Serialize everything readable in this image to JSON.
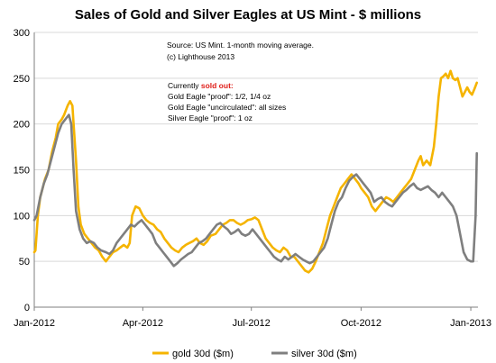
{
  "chart_data": {
    "type": "line",
    "title": "Sales of Gold and Silver Eagles at US Mint - $ millions",
    "ylim": [
      0,
      300
    ],
    "yticks": [
      0,
      50,
      100,
      150,
      200,
      250,
      300
    ],
    "x_range": [
      "2012-01-01",
      "2013-01-07"
    ],
    "xticks": [
      {
        "date": "2012-01-01",
        "label": "Jan-2012"
      },
      {
        "date": "2012-04-01",
        "label": "Apr-2012"
      },
      {
        "date": "2012-07-01",
        "label": "Jul-2012"
      },
      {
        "date": "2012-10-01",
        "label": "Oct-2012"
      },
      {
        "date": "2013-01-01",
        "label": "Jan-2013"
      }
    ],
    "grid": "horizontal",
    "legend_position": "bottom",
    "annotations": {
      "source_lines": [
        "Source: US Mint. 1-month moving average.",
        "(c) Lighthouse 2013"
      ],
      "status_prefix": "Currently ",
      "status_highlight": "sold out:",
      "status_items": [
        "Gold Eagle \"proof\": 1/2, 1/4 oz",
        "Gold Eagle \"uncirculated\": all sizes",
        "Silver Eagle \"proof\": 1 oz"
      ]
    },
    "series": [
      {
        "name": "gold 30d ($m)",
        "color": "#f5b400",
        "points": [
          [
            "2012-01-01",
            60
          ],
          [
            "2012-01-02",
            62
          ],
          [
            "2012-01-04",
            100
          ],
          [
            "2012-01-06",
            120
          ],
          [
            "2012-01-08",
            130
          ],
          [
            "2012-01-10",
            140
          ],
          [
            "2012-01-13",
            150
          ],
          [
            "2012-01-16",
            170
          ],
          [
            "2012-01-19",
            185
          ],
          [
            "2012-01-21",
            200
          ],
          [
            "2012-01-24",
            205
          ],
          [
            "2012-01-26",
            210
          ],
          [
            "2012-01-29",
            220
          ],
          [
            "2012-01-31",
            225
          ],
          [
            "2012-02-02",
            220
          ],
          [
            "2012-02-03",
            200
          ],
          [
            "2012-02-05",
            160
          ],
          [
            "2012-02-07",
            110
          ],
          [
            "2012-02-09",
            90
          ],
          [
            "2012-02-12",
            80
          ],
          [
            "2012-02-15",
            75
          ],
          [
            "2012-02-18",
            70
          ],
          [
            "2012-02-21",
            65
          ],
          [
            "2012-02-24",
            62
          ],
          [
            "2012-02-27",
            55
          ],
          [
            "2012-03-01",
            50
          ],
          [
            "2012-03-04",
            55
          ],
          [
            "2012-03-07",
            60
          ],
          [
            "2012-03-10",
            62
          ],
          [
            "2012-03-13",
            65
          ],
          [
            "2012-03-16",
            68
          ],
          [
            "2012-03-19",
            65
          ],
          [
            "2012-03-21",
            70
          ],
          [
            "2012-03-23",
            100
          ],
          [
            "2012-03-26",
            110
          ],
          [
            "2012-03-29",
            108
          ],
          [
            "2012-04-01",
            100
          ],
          [
            "2012-04-04",
            95
          ],
          [
            "2012-04-07",
            92
          ],
          [
            "2012-04-10",
            90
          ],
          [
            "2012-04-13",
            85
          ],
          [
            "2012-04-16",
            82
          ],
          [
            "2012-04-19",
            75
          ],
          [
            "2012-04-22",
            70
          ],
          [
            "2012-04-25",
            65
          ],
          [
            "2012-04-28",
            62
          ],
          [
            "2012-05-01",
            60
          ],
          [
            "2012-05-04",
            65
          ],
          [
            "2012-05-07",
            68
          ],
          [
            "2012-05-10",
            70
          ],
          [
            "2012-05-13",
            72
          ],
          [
            "2012-05-16",
            75
          ],
          [
            "2012-05-19",
            70
          ],
          [
            "2012-05-22",
            68
          ],
          [
            "2012-05-25",
            72
          ],
          [
            "2012-05-28",
            78
          ],
          [
            "2012-06-01",
            80
          ],
          [
            "2012-06-04",
            85
          ],
          [
            "2012-06-07",
            90
          ],
          [
            "2012-06-10",
            92
          ],
          [
            "2012-06-13",
            95
          ],
          [
            "2012-06-16",
            95
          ],
          [
            "2012-06-19",
            92
          ],
          [
            "2012-06-22",
            90
          ],
          [
            "2012-06-25",
            92
          ],
          [
            "2012-06-28",
            95
          ],
          [
            "2012-07-01",
            96
          ],
          [
            "2012-07-04",
            98
          ],
          [
            "2012-07-07",
            95
          ],
          [
            "2012-07-10",
            85
          ],
          [
            "2012-07-13",
            75
          ],
          [
            "2012-07-16",
            70
          ],
          [
            "2012-07-19",
            65
          ],
          [
            "2012-07-22",
            62
          ],
          [
            "2012-07-25",
            60
          ],
          [
            "2012-07-28",
            65
          ],
          [
            "2012-07-31",
            62
          ],
          [
            "2012-08-03",
            55
          ],
          [
            "2012-08-06",
            55
          ],
          [
            "2012-08-09",
            50
          ],
          [
            "2012-08-12",
            45
          ],
          [
            "2012-08-15",
            40
          ],
          [
            "2012-08-18",
            38
          ],
          [
            "2012-08-21",
            42
          ],
          [
            "2012-08-24",
            50
          ],
          [
            "2012-08-27",
            60
          ],
          [
            "2012-08-30",
            70
          ],
          [
            "2012-09-02",
            85
          ],
          [
            "2012-09-05",
            100
          ],
          [
            "2012-09-08",
            110
          ],
          [
            "2012-09-11",
            120
          ],
          [
            "2012-09-14",
            130
          ],
          [
            "2012-09-17",
            135
          ],
          [
            "2012-09-20",
            140
          ],
          [
            "2012-09-23",
            145
          ],
          [
            "2012-09-26",
            140
          ],
          [
            "2012-09-29",
            135
          ],
          [
            "2012-10-01",
            130
          ],
          [
            "2012-10-04",
            125
          ],
          [
            "2012-10-07",
            120
          ],
          [
            "2012-10-10",
            110
          ],
          [
            "2012-10-13",
            105
          ],
          [
            "2012-10-16",
            110
          ],
          [
            "2012-10-19",
            115
          ],
          [
            "2012-10-22",
            120
          ],
          [
            "2012-10-25",
            118
          ],
          [
            "2012-10-28",
            115
          ],
          [
            "2012-10-31",
            120
          ],
          [
            "2012-11-03",
            125
          ],
          [
            "2012-11-06",
            130
          ],
          [
            "2012-11-09",
            135
          ],
          [
            "2012-11-12",
            140
          ],
          [
            "2012-11-15",
            150
          ],
          [
            "2012-11-18",
            160
          ],
          [
            "2012-11-20",
            165
          ],
          [
            "2012-11-22",
            155
          ],
          [
            "2012-11-25",
            160
          ],
          [
            "2012-11-28",
            155
          ],
          [
            "2012-12-01",
            175
          ],
          [
            "2012-12-03",
            200
          ],
          [
            "2012-12-05",
            230
          ],
          [
            "2012-12-07",
            250
          ],
          [
            "2012-12-09",
            252
          ],
          [
            "2012-12-11",
            255
          ],
          [
            "2012-12-13",
            250
          ],
          [
            "2012-12-15",
            258
          ],
          [
            "2012-12-17",
            250
          ],
          [
            "2012-12-19",
            248
          ],
          [
            "2012-12-21",
            250
          ],
          [
            "2012-12-23",
            240
          ],
          [
            "2012-12-25",
            230
          ],
          [
            "2012-12-27",
            235
          ],
          [
            "2012-12-29",
            240
          ],
          [
            "2012-12-31",
            235
          ],
          [
            "2013-01-02",
            232
          ],
          [
            "2013-01-04",
            238
          ],
          [
            "2013-01-06",
            245
          ]
        ]
      },
      {
        "name": "silver 30d ($m)",
        "color": "#7f7f7f",
        "points": [
          [
            "2012-01-01",
            95
          ],
          [
            "2012-01-03",
            100
          ],
          [
            "2012-01-06",
            120
          ],
          [
            "2012-01-09",
            135
          ],
          [
            "2012-01-12",
            145
          ],
          [
            "2012-01-15",
            160
          ],
          [
            "2012-01-18",
            175
          ],
          [
            "2012-01-21",
            190
          ],
          [
            "2012-01-24",
            200
          ],
          [
            "2012-01-27",
            205
          ],
          [
            "2012-01-30",
            210
          ],
          [
            "2012-02-01",
            200
          ],
          [
            "2012-02-03",
            150
          ],
          [
            "2012-02-05",
            105
          ],
          [
            "2012-02-08",
            85
          ],
          [
            "2012-02-11",
            75
          ],
          [
            "2012-02-14",
            70
          ],
          [
            "2012-02-17",
            72
          ],
          [
            "2012-02-20",
            70
          ],
          [
            "2012-02-23",
            65
          ],
          [
            "2012-02-26",
            62
          ],
          [
            "2012-03-01",
            60
          ],
          [
            "2012-03-04",
            58
          ],
          [
            "2012-03-07",
            62
          ],
          [
            "2012-03-10",
            70
          ],
          [
            "2012-03-13",
            75
          ],
          [
            "2012-03-16",
            80
          ],
          [
            "2012-03-19",
            85
          ],
          [
            "2012-03-22",
            90
          ],
          [
            "2012-03-25",
            88
          ],
          [
            "2012-03-28",
            92
          ],
          [
            "2012-03-31",
            95
          ],
          [
            "2012-04-03",
            90
          ],
          [
            "2012-04-06",
            85
          ],
          [
            "2012-04-09",
            80
          ],
          [
            "2012-04-12",
            70
          ],
          [
            "2012-04-15",
            65
          ],
          [
            "2012-04-18",
            60
          ],
          [
            "2012-04-21",
            55
          ],
          [
            "2012-04-24",
            50
          ],
          [
            "2012-04-27",
            45
          ],
          [
            "2012-04-30",
            48
          ],
          [
            "2012-05-03",
            52
          ],
          [
            "2012-05-06",
            55
          ],
          [
            "2012-05-09",
            58
          ],
          [
            "2012-05-12",
            60
          ],
          [
            "2012-05-15",
            65
          ],
          [
            "2012-05-18",
            70
          ],
          [
            "2012-05-21",
            72
          ],
          [
            "2012-05-24",
            75
          ],
          [
            "2012-05-27",
            80
          ],
          [
            "2012-05-30",
            85
          ],
          [
            "2012-06-02",
            90
          ],
          [
            "2012-06-05",
            92
          ],
          [
            "2012-06-08",
            88
          ],
          [
            "2012-06-11",
            85
          ],
          [
            "2012-06-14",
            80
          ],
          [
            "2012-06-17",
            82
          ],
          [
            "2012-06-20",
            85
          ],
          [
            "2012-06-23",
            80
          ],
          [
            "2012-06-26",
            78
          ],
          [
            "2012-06-29",
            80
          ],
          [
            "2012-07-02",
            85
          ],
          [
            "2012-07-05",
            80
          ],
          [
            "2012-07-08",
            75
          ],
          [
            "2012-07-11",
            70
          ],
          [
            "2012-07-14",
            65
          ],
          [
            "2012-07-17",
            60
          ],
          [
            "2012-07-20",
            55
          ],
          [
            "2012-07-23",
            52
          ],
          [
            "2012-07-26",
            50
          ],
          [
            "2012-07-29",
            55
          ],
          [
            "2012-08-01",
            52
          ],
          [
            "2012-08-04",
            55
          ],
          [
            "2012-08-07",
            58
          ],
          [
            "2012-08-10",
            55
          ],
          [
            "2012-08-13",
            52
          ],
          [
            "2012-08-16",
            50
          ],
          [
            "2012-08-19",
            48
          ],
          [
            "2012-08-22",
            50
          ],
          [
            "2012-08-25",
            55
          ],
          [
            "2012-08-28",
            60
          ],
          [
            "2012-08-31",
            65
          ],
          [
            "2012-09-03",
            75
          ],
          [
            "2012-09-06",
            90
          ],
          [
            "2012-09-09",
            105
          ],
          [
            "2012-09-12",
            115
          ],
          [
            "2012-09-15",
            120
          ],
          [
            "2012-09-18",
            130
          ],
          [
            "2012-09-21",
            138
          ],
          [
            "2012-09-24",
            142
          ],
          [
            "2012-09-27",
            145
          ],
          [
            "2012-09-30",
            140
          ],
          [
            "2012-10-03",
            135
          ],
          [
            "2012-10-06",
            130
          ],
          [
            "2012-10-09",
            125
          ],
          [
            "2012-10-12",
            115
          ],
          [
            "2012-10-15",
            118
          ],
          [
            "2012-10-18",
            120
          ],
          [
            "2012-10-21",
            115
          ],
          [
            "2012-10-24",
            112
          ],
          [
            "2012-10-27",
            110
          ],
          [
            "2012-10-30",
            115
          ],
          [
            "2012-11-02",
            120
          ],
          [
            "2012-11-05",
            125
          ],
          [
            "2012-11-08",
            128
          ],
          [
            "2012-11-11",
            132
          ],
          [
            "2012-11-14",
            135
          ],
          [
            "2012-11-17",
            130
          ],
          [
            "2012-11-20",
            128
          ],
          [
            "2012-11-23",
            130
          ],
          [
            "2012-11-26",
            132
          ],
          [
            "2012-11-29",
            128
          ],
          [
            "2012-12-02",
            125
          ],
          [
            "2012-12-05",
            120
          ],
          [
            "2012-12-08",
            125
          ],
          [
            "2012-12-11",
            120
          ],
          [
            "2012-12-14",
            115
          ],
          [
            "2012-12-17",
            110
          ],
          [
            "2012-12-20",
            100
          ],
          [
            "2012-12-23",
            80
          ],
          [
            "2012-12-26",
            60
          ],
          [
            "2012-12-29",
            52
          ],
          [
            "2013-01-01",
            50
          ],
          [
            "2013-01-03",
            50
          ],
          [
            "2013-01-05",
            100
          ],
          [
            "2013-01-06",
            168
          ]
        ]
      }
    ]
  }
}
